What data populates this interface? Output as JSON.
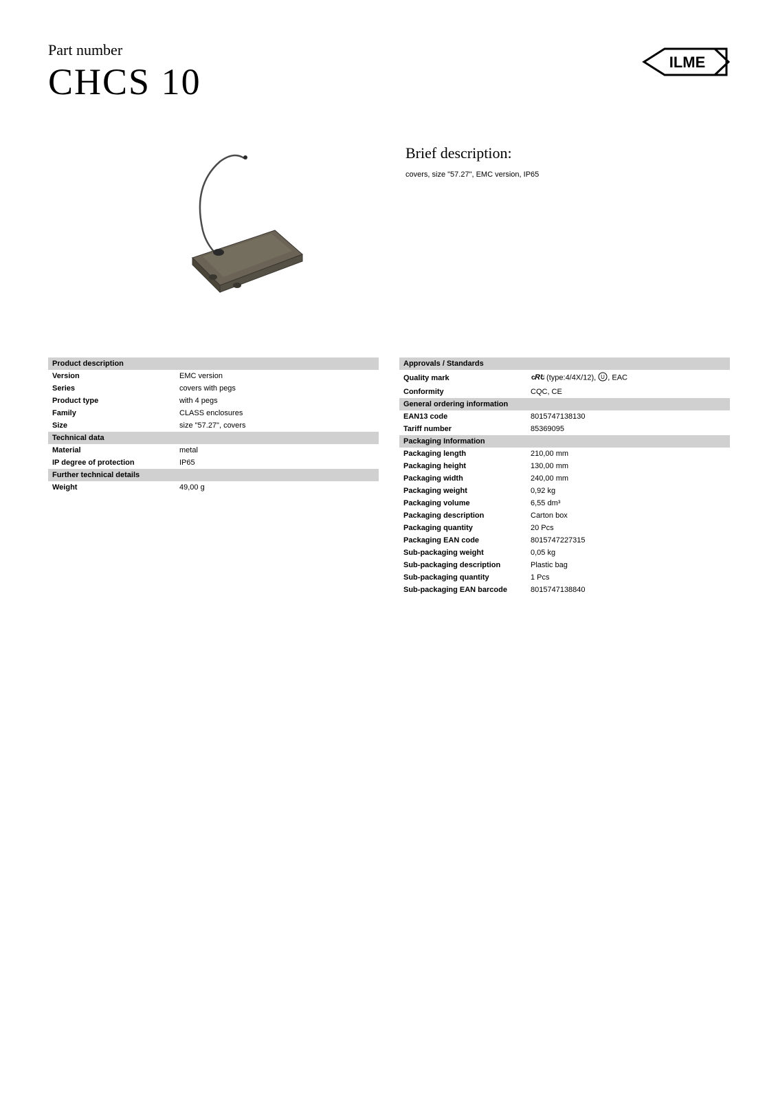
{
  "header": {
    "label": "Part number",
    "part_number": "CHCS 10",
    "logo_text": "ILME"
  },
  "brief": {
    "title": "Brief description:",
    "text": "covers, size \"57.27\", EMC version, IP65"
  },
  "left_table": {
    "sections": [
      {
        "header": "Product description",
        "rows": [
          {
            "label": "Version",
            "value": "EMC version"
          },
          {
            "label": "Series",
            "value": "covers with pegs"
          },
          {
            "label": "Product type",
            "value": "with 4 pegs"
          },
          {
            "label": "Family",
            "value": "CLASS enclosures"
          },
          {
            "label": "Size",
            "value": "size \"57.27\", covers"
          }
        ]
      },
      {
        "header": "Technical data",
        "rows": [
          {
            "label": "Material",
            "value": "metal"
          },
          {
            "label": "IP degree of protection",
            "value": "IP65"
          }
        ]
      },
      {
        "header": "Further technical details",
        "rows": [
          {
            "label": "Weight",
            "value": "49,00 g"
          }
        ]
      }
    ]
  },
  "right_table": {
    "sections": [
      {
        "header": "Approvals / Standards",
        "rows": [
          {
            "label": "Quality mark",
            "value_prefix_icon": "ul",
            "value_mid": " (type:4/4X/12), ",
            "value_icon2": "circle",
            "value_suffix": ", EAC"
          },
          {
            "label": "Conformity",
            "value": "CQC, CE"
          }
        ]
      },
      {
        "header": "General ordering information",
        "rows": [
          {
            "label": "EAN13 code",
            "value": "8015747138130"
          },
          {
            "label": "Tariff number",
            "value": "85369095"
          }
        ]
      },
      {
        "header": "Packaging Information",
        "rows": [
          {
            "label": "Packaging length",
            "value": "210,00 mm"
          },
          {
            "label": "Packaging height",
            "value": "130,00 mm"
          },
          {
            "label": "Packaging width",
            "value": "240,00 mm"
          },
          {
            "label": "Packaging weight",
            "value": "0,92 kg"
          },
          {
            "label": "Packaging volume",
            "value": "6,55 dm³"
          },
          {
            "label": "Packaging description",
            "value": "Carton box"
          },
          {
            "label": "Packaging quantity",
            "value": "20 Pcs"
          },
          {
            "label": "Packaging EAN code",
            "value": "8015747227315"
          },
          {
            "label": "Sub-packaging weight",
            "value": "0,05 kg"
          },
          {
            "label": "Sub-packaging description",
            "value": "Plastic bag"
          },
          {
            "label": "Sub-packaging quantity",
            "value": "1 Pcs"
          },
          {
            "label": "Sub-packaging EAN barcode",
            "value": "8015747138840"
          }
        ]
      }
    ]
  },
  "colors": {
    "section_bg": "#d0d0d0",
    "text": "#000000",
    "page_bg": "#ffffff",
    "product_body": "#6b6456",
    "product_highlight": "#8a8272",
    "product_dark": "#3a3630"
  }
}
